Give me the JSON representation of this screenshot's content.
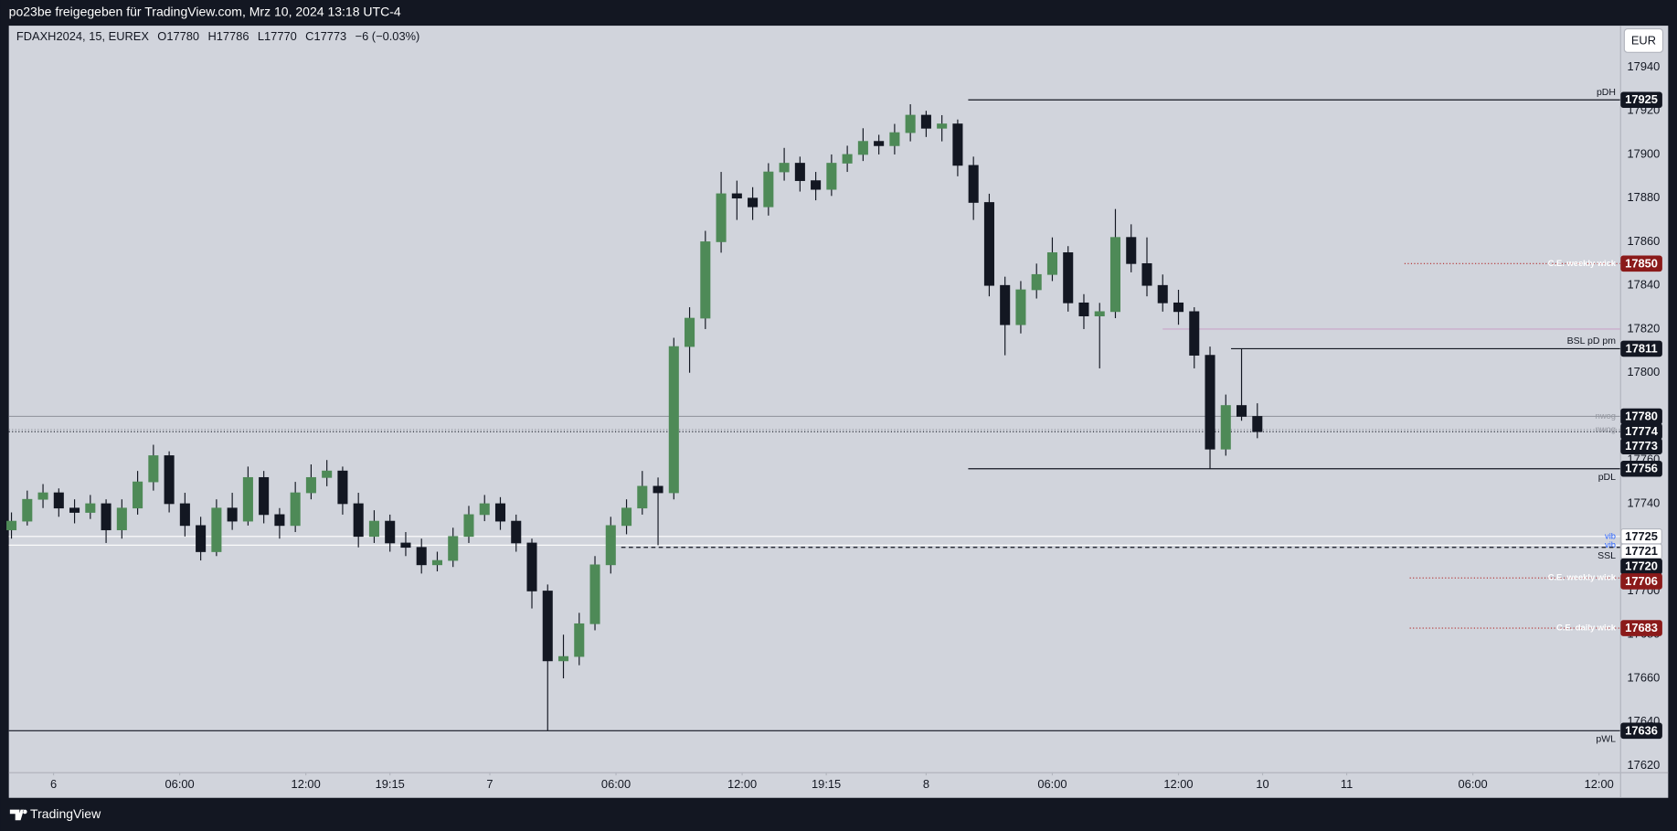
{
  "top_bar": "po23be freigegeben für TradingView.com, Mrz 10, 2024 13:18 UTC-4",
  "footer": "TradingView",
  "chart_data": {
    "type": "candlestick",
    "symbol": "FDAXH2024, 15, EUREX",
    "ohlc_labels": [
      "O",
      "H",
      "L",
      "C"
    ],
    "change": "−6 (−0.03%)",
    "currency": "EUR",
    "x": [
      0,
      3,
      6,
      9,
      12,
      15,
      18,
      21,
      24,
      27,
      30,
      33,
      36,
      39,
      42,
      45,
      48,
      51,
      54,
      57,
      60,
      63,
      66,
      69,
      72,
      75,
      78,
      81,
      84,
      87,
      90,
      93,
      96,
      99,
      102,
      105,
      108,
      111,
      114,
      117,
      120,
      123,
      126,
      129,
      132,
      135,
      138,
      141,
      144,
      147,
      150,
      153,
      156,
      159,
      162,
      165,
      168,
      171,
      174,
      177,
      180,
      183,
      186,
      189,
      192,
      195,
      198,
      201,
      204,
      207,
      210,
      213,
      216,
      219,
      222,
      225,
      228,
      231,
      234,
      237
    ],
    "open": [
      17728,
      17732,
      17742,
      17745,
      17738,
      17736,
      17740,
      17728,
      17738,
      17750,
      17762,
      17740,
      17730,
      17718,
      17738,
      17732,
      17752,
      17735,
      17730,
      17745,
      17752,
      17755,
      17740,
      17725,
      17732,
      17722,
      17720,
      17712,
      17714,
      17725,
      17735,
      17740,
      17732,
      17722,
      17700,
      17668,
      17670,
      17685,
      17712,
      17730,
      17738,
      17748,
      17745,
      17812,
      17825,
      17860,
      17882,
      17880,
      17876,
      17892,
      17896,
      17888,
      17884,
      17896,
      17900,
      17906,
      17904,
      17910,
      17918,
      17912,
      17914,
      17895,
      17878,
      17840,
      17822,
      17838,
      17845,
      17855,
      17832,
      17826,
      17828,
      17862,
      17850,
      17840,
      17832,
      17828,
      17808,
      17765,
      17785,
      17780
    ],
    "high": [
      17736,
      17746,
      17749,
      17747,
      17742,
      17744,
      17742,
      17742,
      17755,
      17767,
      17764,
      17745,
      17734,
      17742,
      17745,
      17757,
      17755,
      17738,
      17750,
      17758,
      17760,
      17757,
      17745,
      17737,
      17735,
      17727,
      17724,
      17718,
      17729,
      17739,
      17744,
      17743,
      17735,
      17724,
      17703,
      17680,
      17690,
      17716,
      17734,
      17742,
      17755,
      17752,
      17816,
      17830,
      17865,
      17892,
      17888,
      17885,
      17896,
      17903,
      17899,
      17892,
      17900,
      17904,
      17912,
      17909,
      17914,
      17923,
      17920,
      17918,
      17916,
      17899,
      17882,
      17844,
      17842,
      17850,
      17862,
      17858,
      17836,
      17832,
      17875,
      17868,
      17862,
      17845,
      17838,
      17830,
      17812,
      17790,
      17811,
      17786
    ],
    "low": [
      17724,
      17730,
      17738,
      17734,
      17731,
      17733,
      17722,
      17724,
      17735,
      17746,
      17736,
      17725,
      17714,
      17716,
      17728,
      17730,
      17731,
      17724,
      17727,
      17742,
      17748,
      17735,
      17720,
      17722,
      17718,
      17716,
      17708,
      17709,
      17711,
      17722,
      17732,
      17728,
      17718,
      17692,
      17636,
      17660,
      17666,
      17682,
      17708,
      17726,
      17735,
      17721,
      17742,
      17800,
      17820,
      17855,
      17870,
      17870,
      17872,
      17888,
      17883,
      17879,
      17881,
      17892,
      17897,
      17900,
      17900,
      17906,
      17908,
      17906,
      17890,
      17870,
      17835,
      17808,
      17818,
      17834,
      17842,
      17828,
      17820,
      17802,
      17825,
      17846,
      17835,
      17828,
      17822,
      17802,
      17756,
      17762,
      17778,
      17770
    ],
    "close": [
      17732,
      17742,
      17745,
      17738,
      17736,
      17740,
      17728,
      17738,
      17750,
      17762,
      17740,
      17730,
      17718,
      17738,
      17732,
      17752,
      17735,
      17730,
      17745,
      17752,
      17755,
      17740,
      17725,
      17732,
      17722,
      17720,
      17712,
      17714,
      17725,
      17735,
      17740,
      17732,
      17722,
      17700,
      17668,
      17670,
      17685,
      17712,
      17730,
      17738,
      17748,
      17745,
      17812,
      17825,
      17860,
      17882,
      17880,
      17876,
      17892,
      17896,
      17888,
      17884,
      17896,
      17900,
      17906,
      17904,
      17910,
      17918,
      17912,
      17914,
      17895,
      17878,
      17840,
      17822,
      17838,
      17845,
      17855,
      17832,
      17826,
      17828,
      17862,
      17850,
      17840,
      17832,
      17828,
      17808,
      17765,
      17785,
      17780,
      17773
    ],
    "up_color": "#4e8a57",
    "down_color": "#131722",
    "xlim": [
      -0.5,
      306
    ],
    "xticks": [
      {
        "value": 8,
        "label": "6"
      },
      {
        "value": 32,
        "label": "06:00"
      },
      {
        "value": 56,
        "label": "12:00"
      },
      {
        "value": 72,
        "label": "19:15"
      },
      {
        "value": 91,
        "label": "7"
      },
      {
        "value": 115,
        "label": "06:00"
      },
      {
        "value": 139,
        "label": "12:00"
      },
      {
        "value": 155,
        "label": "19:15"
      },
      {
        "value": 174,
        "label": "8"
      },
      {
        "value": 198,
        "label": "06:00"
      },
      {
        "value": 222,
        "label": "12:00"
      },
      {
        "value": 238,
        "label": "10"
      },
      {
        "value": 254,
        "label": "11"
      },
      {
        "value": 278,
        "label": "06:00"
      },
      {
        "value": 302,
        "label": "12:00"
      }
    ],
    "ylim": [
      17617,
      17959
    ],
    "yticks": [
      17620,
      17640,
      17660,
      17680,
      17700,
      17720,
      17740,
      17760,
      17780,
      17800,
      17820,
      17840,
      17860,
      17880,
      17900,
      17920,
      17940
    ],
    "grid": false,
    "levels": [
      {
        "price": 17925,
        "label": "pDH",
        "x_start": 182,
        "color": "#131722",
        "style": "solid",
        "badge_color": "#131722",
        "badge_text": "#ffffff",
        "label_pos": "above",
        "label_color": "#131722"
      },
      {
        "price": 17850,
        "label": "C.E. weekly wick",
        "x_start": 265,
        "color": "#b22a2a",
        "style": "dotted",
        "badge_color": "#8b1a1a",
        "badge_text": "#ffffff",
        "label_pos": "on",
        "label_color": "#ffffff"
      },
      {
        "price": 17820,
        "x_start": 219,
        "color": "#c9a3c9",
        "style": "solid"
      },
      {
        "price": 17811,
        "label": "BSL pD pm",
        "x_start": 232,
        "color": "#131722",
        "style": "solid",
        "badge_color": "#131722",
        "badge_text": "#ffffff",
        "label_pos": "above",
        "label_color": "#131722"
      },
      {
        "price": 17780,
        "label": "nwog",
        "color": "#9598a1",
        "style": "solid",
        "badge_color": "#131722",
        "badge_text": "#ffffff",
        "label_pos": "on",
        "label_color": "#9598a1"
      },
      {
        "price": 17774,
        "label": "nwog",
        "color": "#9598a1",
        "style": "dotted",
        "badge_color": "#131722",
        "badge_text": "#ffffff",
        "label_pos": "on",
        "label_color": "#9598a1"
      },
      {
        "price": 17773,
        "color": "#131722",
        "style": "dotted",
        "badge_color": "#131722",
        "badge_text": "#ffffff"
      },
      {
        "price": 17756,
        "label": "pDL",
        "x_start": 182,
        "color": "#131722",
        "style": "solid",
        "badge_color": "#131722",
        "badge_text": "#ffffff",
        "label_pos": "below",
        "label_color": "#131722"
      },
      {
        "price": 17725,
        "label": "vib",
        "color": "#ffffff",
        "style": "solid",
        "badge_color": "#ffffff",
        "badge_text": "#131722",
        "label_pos": "on",
        "label_color": "#2962ff"
      },
      {
        "price": 17721,
        "label": "vib",
        "color": "#ffffff",
        "style": "solid",
        "badge_color": "#ffffff",
        "badge_text": "#131722",
        "label_pos": "on",
        "label_color": "#2962ff"
      },
      {
        "price": 17720,
        "label": "SSL",
        "x_start": 116,
        "color": "#131722",
        "style": "dashed",
        "badge_color": "#131722",
        "badge_text": "#ffffff",
        "label_pos": "below",
        "label_color": "#131722"
      },
      {
        "price": 17706,
        "label": "C.E. weekly wick",
        "x_start": 266,
        "color": "#b22a2a",
        "style": "dotted",
        "badge_color": "#8b1a1a",
        "badge_text": "#ffffff",
        "label_pos": "on",
        "label_color": "#ffffff"
      },
      {
        "price": 17683,
        "label": "C.E. daily wick",
        "x_start": 266,
        "color": "#b22a2a",
        "style": "dotted",
        "badge_color": "#8b1a1a",
        "badge_text": "#ffffff",
        "label_pos": "on",
        "label_color": "#ffffff"
      },
      {
        "price": 17636,
        "label": "pWL",
        "color": "#131722",
        "style": "solid",
        "badge_color": "#131722",
        "badge_text": "#ffffff",
        "label_pos": "below",
        "label_color": "#131722"
      }
    ]
  }
}
